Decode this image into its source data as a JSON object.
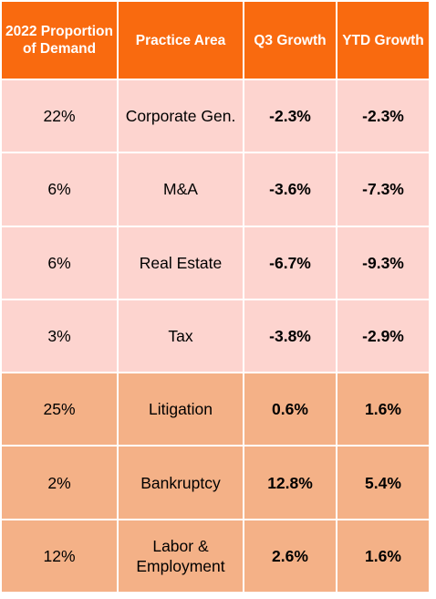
{
  "table": {
    "headers": [
      "2022 Proportion of Demand",
      "Practice Area",
      "Q3 Growth",
      "YTD Growth"
    ],
    "colors": {
      "header_bg": "#f96a0f",
      "header_text": "#ffffff",
      "decline_row_bg": "#fdd4cf",
      "growth_row_bg": "#f4b187"
    },
    "rows": [
      {
        "proportion": "22%",
        "practice_area": "Corporate Gen.",
        "q3_growth": "-2.3%",
        "ytd_growth": "-2.3%"
      },
      {
        "proportion": "6%",
        "practice_area": "M&A",
        "q3_growth": "-3.6%",
        "ytd_growth": "-7.3%"
      },
      {
        "proportion": "6%",
        "practice_area": "Real Estate",
        "q3_growth": "-6.7%",
        "ytd_growth": "-9.3%"
      },
      {
        "proportion": "3%",
        "practice_area": "Tax",
        "q3_growth": "-3.8%",
        "ytd_growth": "-2.9%"
      },
      {
        "proportion": "25%",
        "practice_area": "Litigation",
        "q3_growth": "0.6%",
        "ytd_growth": "1.6%"
      },
      {
        "proportion": "2%",
        "practice_area": "Bankruptcy",
        "q3_growth": "12.8%",
        "ytd_growth": "5.4%"
      },
      {
        "proportion": "12%",
        "practice_area": "Labor & Employment",
        "q3_growth": "2.6%",
        "ytd_growth": "1.6%"
      }
    ]
  }
}
